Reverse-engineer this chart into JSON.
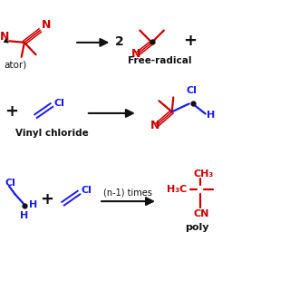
{
  "bg_color": "#ffffff",
  "colors": {
    "red": "#cc0000",
    "blue": "#1a1aee",
    "black": "#111111"
  },
  "labels": {
    "initiator": "ator)",
    "free_radical": "Free-radical",
    "vinyl_chloride": "Vinyl chloride",
    "n_times": "(n-1) times",
    "poly": "poly",
    "coeff2": "2",
    "plus": "+"
  }
}
